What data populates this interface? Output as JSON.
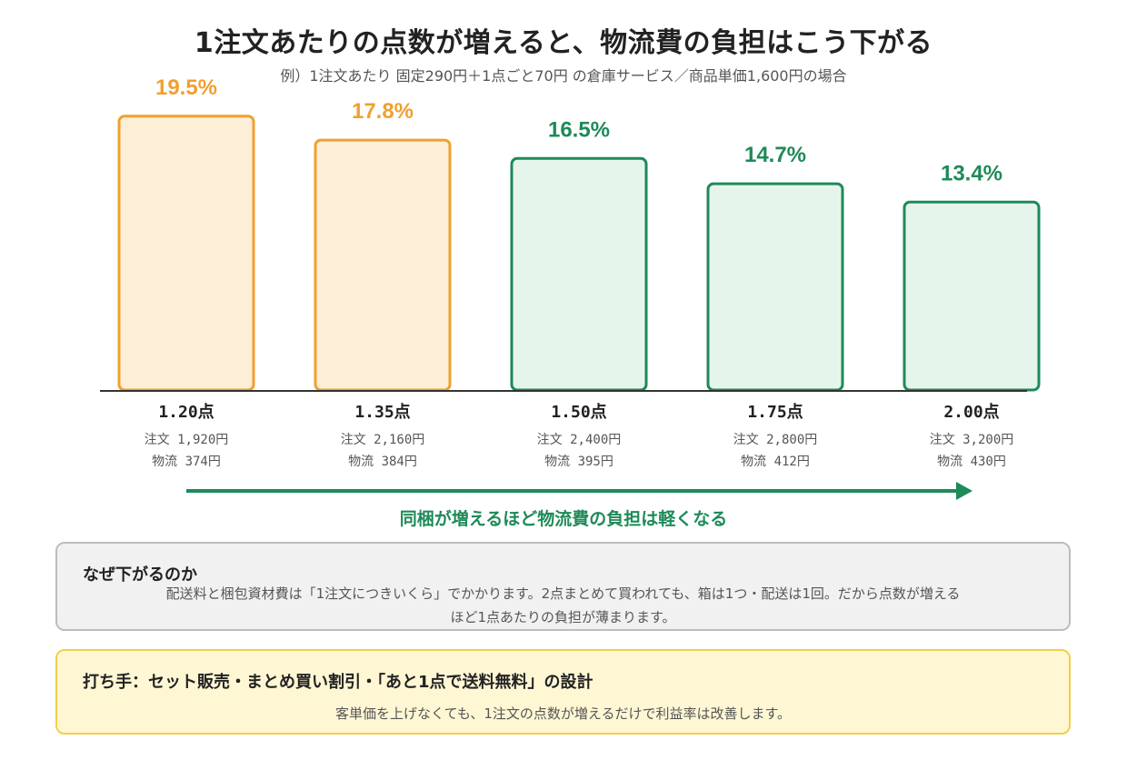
{
  "header": {
    "title": "1注文あたりの点数が増えると、物流費の負担はこう下がる",
    "subtitle": "例）1注文あたり 固定290円＋1点ごと70円 の倉庫サービス／商品単価1,600円の場合"
  },
  "colors": {
    "orange_border": "#f0a030",
    "orange_fill": "#fdeed8",
    "green_border": "#1e8a58",
    "green_fill": "#e6f5ec"
  },
  "chart_data": {
    "type": "bar",
    "categories": [
      "1.20点",
      "1.35点",
      "1.50点",
      "1.75点",
      "2.00点"
    ],
    "values": [
      19.5,
      17.8,
      16.5,
      14.7,
      13.4
    ],
    "value_labels": [
      "19.5%",
      "17.8%",
      "16.5%",
      "14.7%",
      "13.4%"
    ],
    "order_lines": [
      "注文 1,920円",
      "注文 2,160円",
      "注文 2,400円",
      "注文 2,800円",
      "注文 3,200円"
    ],
    "logistics_lines": [
      "物流 374円",
      "物流 384円",
      "物流 395円",
      "物流 412円",
      "物流 430円"
    ],
    "highlight": [
      "orange",
      "orange",
      "green",
      "green",
      "green"
    ],
    "ylim": [
      0,
      20
    ],
    "grid": false,
    "legend": "none"
  },
  "arrow": {
    "label": "同梱が増えるほど物流費の負担は軽くなる"
  },
  "reason_box": {
    "heading": "なぜ下がるのか",
    "body_line1": "配送料と梱包資材費は「1注文につきいくら」でかかります。2点まとめて買われても、箱は1つ・配送は1回。だから点数が増える",
    "body_line2": "ほど1点あたりの負担が薄まります。"
  },
  "action_box": {
    "heading": "打ち手：セット販売・まとめ買い割引・「あと1点で送料無料」の設計",
    "body": "客単価を上げなくても、1注文の点数が増えるだけで利益率は改善します。"
  }
}
